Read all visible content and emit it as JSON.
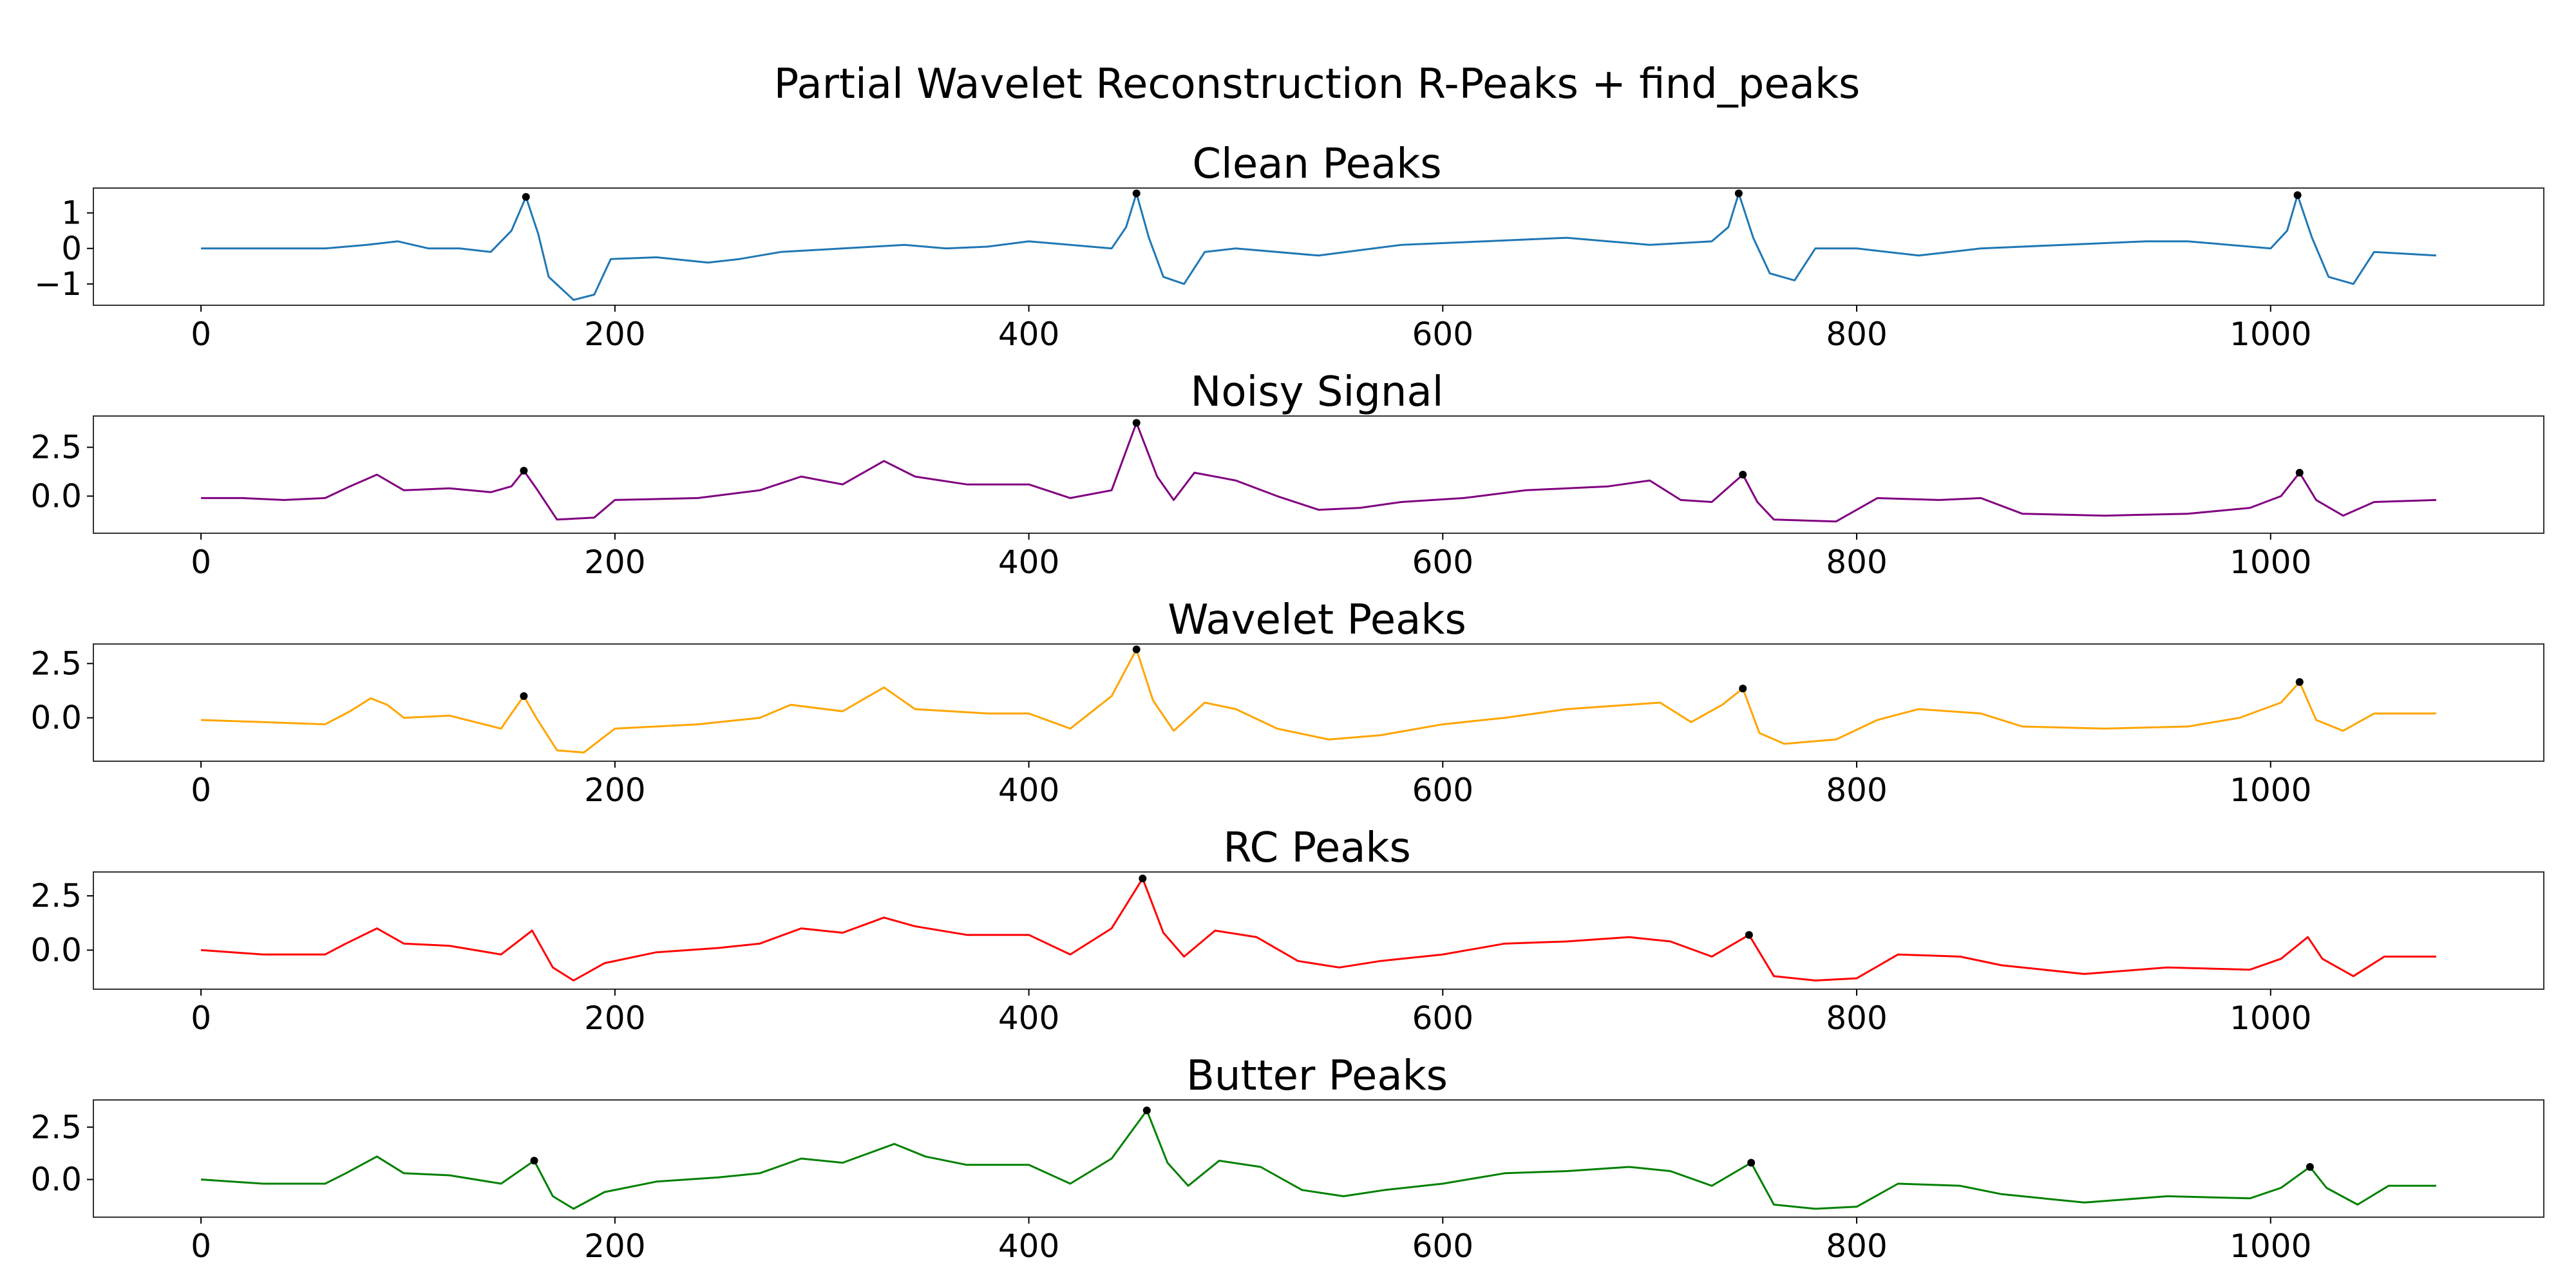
{
  "figure_title": "Partial Wavelet Reconstruction R-Peaks + find_peaks",
  "chart_data": [
    {
      "type": "line",
      "title": "Clean Peaks",
      "color": "#1f77b4",
      "xlim": [
        -52,
        1132
      ],
      "ylim": [
        -1.6,
        1.7
      ],
      "xticks": [
        0,
        200,
        400,
        600,
        800,
        1000
      ],
      "yticks": [
        1,
        0,
        -1
      ],
      "ytick_labels": [
        "1",
        "0",
        "−1"
      ],
      "points": [
        [
          0,
          0
        ],
        [
          20,
          0
        ],
        [
          40,
          0
        ],
        [
          60,
          0
        ],
        [
          80,
          0.1
        ],
        [
          95,
          0.2
        ],
        [
          110,
          0
        ],
        [
          125,
          0
        ],
        [
          140,
          -0.1
        ],
        [
          150,
          0.5
        ],
        [
          157,
          1.45
        ],
        [
          163,
          0.4
        ],
        [
          168,
          -0.8
        ],
        [
          180,
          -1.45
        ],
        [
          190,
          -1.3
        ],
        [
          198,
          -0.3
        ],
        [
          220,
          -0.25
        ],
        [
          245,
          -0.4
        ],
        [
          260,
          -0.3
        ],
        [
          280,
          -0.1
        ],
        [
          310,
          0
        ],
        [
          340,
          0.1
        ],
        [
          360,
          0
        ],
        [
          380,
          0.05
        ],
        [
          400,
          0.2
        ],
        [
          420,
          0.1
        ],
        [
          440,
          0
        ],
        [
          447,
          0.6
        ],
        [
          452,
          1.55
        ],
        [
          458,
          0.3
        ],
        [
          465,
          -0.8
        ],
        [
          475,
          -1
        ],
        [
          485,
          -0.1
        ],
        [
          500,
          0
        ],
        [
          540,
          -0.2
        ],
        [
          580,
          0.1
        ],
        [
          620,
          0.2
        ],
        [
          660,
          0.3
        ],
        [
          680,
          0.2
        ],
        [
          700,
          0.1
        ],
        [
          730,
          0.2
        ],
        [
          738,
          0.6
        ],
        [
          743,
          1.55
        ],
        [
          750,
          0.3
        ],
        [
          758,
          -0.7
        ],
        [
          770,
          -0.9
        ],
        [
          780,
          0
        ],
        [
          800,
          0
        ],
        [
          830,
          -0.2
        ],
        [
          860,
          0
        ],
        [
          900,
          0.1
        ],
        [
          940,
          0.2
        ],
        [
          960,
          0.2
        ],
        [
          980,
          0.1
        ],
        [
          1000,
          0
        ],
        [
          1008,
          0.5
        ],
        [
          1013,
          1.5
        ],
        [
          1020,
          0.3
        ],
        [
          1028,
          -0.8
        ],
        [
          1040,
          -1
        ],
        [
          1050,
          -0.1
        ],
        [
          1080,
          -0.2
        ]
      ],
      "peaks": [
        [
          157,
          1.45
        ],
        [
          452,
          1.55
        ],
        [
          743,
          1.55
        ],
        [
          1013,
          1.5
        ]
      ]
    },
    {
      "type": "line",
      "title": "Noisy Signal",
      "color": "#800080",
      "xlim": [
        -52,
        1132
      ],
      "ylim": [
        -1.9,
        4.1
      ],
      "xticks": [
        0,
        200,
        400,
        600,
        800,
        1000
      ],
      "yticks": [
        2.5,
        0.0
      ],
      "ytick_labels": [
        "2.5",
        "0.0"
      ],
      "points": [
        [
          0,
          -0.1
        ],
        [
          20,
          -0.1
        ],
        [
          40,
          -0.2
        ],
        [
          60,
          -0.1
        ],
        [
          72,
          0.5
        ],
        [
          85,
          1.1
        ],
        [
          98,
          0.3
        ],
        [
          120,
          0.4
        ],
        [
          140,
          0.2
        ],
        [
          150,
          0.5
        ],
        [
          156,
          1.3
        ],
        [
          162,
          0.4
        ],
        [
          172,
          -1.2
        ],
        [
          190,
          -1.1
        ],
        [
          200,
          -0.2
        ],
        [
          240,
          -0.1
        ],
        [
          270,
          0.3
        ],
        [
          290,
          1.0
        ],
        [
          310,
          0.6
        ],
        [
          330,
          1.8
        ],
        [
          345,
          1.0
        ],
        [
          370,
          0.6
        ],
        [
          400,
          0.6
        ],
        [
          420,
          -0.1
        ],
        [
          440,
          0.3
        ],
        [
          452,
          3.75
        ],
        [
          462,
          1.0
        ],
        [
          470,
          -0.2
        ],
        [
          480,
          1.2
        ],
        [
          500,
          0.8
        ],
        [
          520,
          0.0
        ],
        [
          540,
          -0.7
        ],
        [
          560,
          -0.6
        ],
        [
          580,
          -0.3
        ],
        [
          610,
          -0.1
        ],
        [
          640,
          0.3
        ],
        [
          680,
          0.5
        ],
        [
          700,
          0.8
        ],
        [
          715,
          -0.2
        ],
        [
          730,
          -0.3
        ],
        [
          745,
          1.1
        ],
        [
          752,
          -0.3
        ],
        [
          760,
          -1.2
        ],
        [
          790,
          -1.3
        ],
        [
          810,
          -0.1
        ],
        [
          840,
          -0.2
        ],
        [
          860,
          -0.1
        ],
        [
          880,
          -0.9
        ],
        [
          920,
          -1.0
        ],
        [
          960,
          -0.9
        ],
        [
          990,
          -0.6
        ],
        [
          1005,
          0.0
        ],
        [
          1014,
          1.2
        ],
        [
          1022,
          -0.2
        ],
        [
          1035,
          -1.0
        ],
        [
          1050,
          -0.3
        ],
        [
          1080,
          -0.2
        ]
      ],
      "peaks": [
        [
          156,
          1.3
        ],
        [
          452,
          3.75
        ],
        [
          745,
          1.1
        ],
        [
          1014,
          1.2
        ]
      ]
    },
    {
      "type": "line",
      "title": "Wavelet Peaks",
      "color": "#ffa500",
      "xlim": [
        -52,
        1132
      ],
      "ylim": [
        -2.0,
        3.4
      ],
      "xticks": [
        0,
        200,
        400,
        600,
        800,
        1000
      ],
      "yticks": [
        2.5,
        0.0
      ],
      "ytick_labels": [
        "2.5",
        "0.0"
      ],
      "points": [
        [
          0,
          -0.1
        ],
        [
          30,
          -0.2
        ],
        [
          60,
          -0.3
        ],
        [
          72,
          0.3
        ],
        [
          82,
          0.9
        ],
        [
          90,
          0.6
        ],
        [
          98,
          0.0
        ],
        [
          120,
          0.1
        ],
        [
          145,
          -0.5
        ],
        [
          150,
          0.2
        ],
        [
          156,
          1.0
        ],
        [
          162,
          0.0
        ],
        [
          172,
          -1.5
        ],
        [
          185,
          -1.6
        ],
        [
          200,
          -0.5
        ],
        [
          240,
          -0.3
        ],
        [
          270,
          0.0
        ],
        [
          285,
          0.6
        ],
        [
          310,
          0.3
        ],
        [
          330,
          1.4
        ],
        [
          345,
          0.4
        ],
        [
          380,
          0.2
        ],
        [
          400,
          0.2
        ],
        [
          420,
          -0.5
        ],
        [
          440,
          1.0
        ],
        [
          452,
          3.15
        ],
        [
          460,
          0.8
        ],
        [
          470,
          -0.6
        ],
        [
          485,
          0.7
        ],
        [
          500,
          0.4
        ],
        [
          520,
          -0.5
        ],
        [
          545,
          -1.0
        ],
        [
          570,
          -0.8
        ],
        [
          600,
          -0.3
        ],
        [
          630,
          0.0
        ],
        [
          660,
          0.4
        ],
        [
          690,
          0.6
        ],
        [
          705,
          0.7
        ],
        [
          720,
          -0.2
        ],
        [
          735,
          0.6
        ],
        [
          745,
          1.35
        ],
        [
          753,
          -0.7
        ],
        [
          765,
          -1.2
        ],
        [
          790,
          -1.0
        ],
        [
          810,
          -0.1
        ],
        [
          830,
          0.4
        ],
        [
          860,
          0.2
        ],
        [
          880,
          -0.4
        ],
        [
          920,
          -0.5
        ],
        [
          960,
          -0.4
        ],
        [
          985,
          0.0
        ],
        [
          1005,
          0.7
        ],
        [
          1014,
          1.65
        ],
        [
          1022,
          -0.1
        ],
        [
          1035,
          -0.6
        ],
        [
          1050,
          0.2
        ],
        [
          1080,
          0.2
        ]
      ],
      "peaks": [
        [
          156,
          1.0
        ],
        [
          452,
          3.15
        ],
        [
          745,
          1.35
        ],
        [
          1014,
          1.65
        ]
      ]
    },
    {
      "type": "line",
      "title": "RC Peaks",
      "color": "#ff0000",
      "xlim": [
        -52,
        1132
      ],
      "ylim": [
        -1.8,
        3.6
      ],
      "xticks": [
        0,
        200,
        400,
        600,
        800,
        1000
      ],
      "yticks": [
        2.5,
        0.0
      ],
      "ytick_labels": [
        "2.5",
        "0.0"
      ],
      "points": [
        [
          0,
          0.0
        ],
        [
          30,
          -0.2
        ],
        [
          60,
          -0.2
        ],
        [
          70,
          0.3
        ],
        [
          85,
          1.0
        ],
        [
          98,
          0.3
        ],
        [
          120,
          0.2
        ],
        [
          145,
          -0.2
        ],
        [
          160,
          0.9
        ],
        [
          170,
          -0.8
        ],
        [
          180,
          -1.4
        ],
        [
          195,
          -0.6
        ],
        [
          220,
          -0.1
        ],
        [
          250,
          0.1
        ],
        [
          270,
          0.3
        ],
        [
          290,
          1.0
        ],
        [
          310,
          0.8
        ],
        [
          330,
          1.5
        ],
        [
          345,
          1.1
        ],
        [
          370,
          0.7
        ],
        [
          400,
          0.7
        ],
        [
          420,
          -0.2
        ],
        [
          440,
          1.0
        ],
        [
          455,
          3.3
        ],
        [
          465,
          0.8
        ],
        [
          475,
          -0.3
        ],
        [
          490,
          0.9
        ],
        [
          510,
          0.6
        ],
        [
          530,
          -0.5
        ],
        [
          550,
          -0.8
        ],
        [
          570,
          -0.5
        ],
        [
          600,
          -0.2
        ],
        [
          630,
          0.3
        ],
        [
          660,
          0.4
        ],
        [
          690,
          0.6
        ],
        [
          710,
          0.4
        ],
        [
          730,
          -0.3
        ],
        [
          748,
          0.7
        ],
        [
          760,
          -1.2
        ],
        [
          780,
          -1.4
        ],
        [
          800,
          -1.3
        ],
        [
          820,
          -0.2
        ],
        [
          850,
          -0.3
        ],
        [
          870,
          -0.7
        ],
        [
          910,
          -1.1
        ],
        [
          950,
          -0.8
        ],
        [
          990,
          -0.9
        ],
        [
          1005,
          -0.4
        ],
        [
          1018,
          0.6
        ],
        [
          1025,
          -0.4
        ],
        [
          1040,
          -1.2
        ],
        [
          1055,
          -0.3
        ],
        [
          1080,
          -0.3
        ]
      ],
      "peaks": [
        [
          455,
          3.3
        ],
        [
          748,
          0.7
        ]
      ]
    },
    {
      "type": "line",
      "title": "Butter Peaks",
      "color": "#008000",
      "xlim": [
        -52,
        1132
      ],
      "ylim": [
        -1.8,
        3.8
      ],
      "xticks": [
        0,
        200,
        400,
        600,
        800,
        1000
      ],
      "yticks": [
        2.5,
        0.0
      ],
      "ytick_labels": [
        "2.5",
        "0.0"
      ],
      "points": [
        [
          0,
          0.0
        ],
        [
          30,
          -0.2
        ],
        [
          60,
          -0.2
        ],
        [
          70,
          0.3
        ],
        [
          85,
          1.1
        ],
        [
          98,
          0.3
        ],
        [
          120,
          0.2
        ],
        [
          145,
          -0.2
        ],
        [
          161,
          0.9
        ],
        [
          170,
          -0.8
        ],
        [
          180,
          -1.4
        ],
        [
          195,
          -0.6
        ],
        [
          220,
          -0.1
        ],
        [
          250,
          0.1
        ],
        [
          270,
          0.3
        ],
        [
          290,
          1.0
        ],
        [
          310,
          0.8
        ],
        [
          335,
          1.7
        ],
        [
          350,
          1.1
        ],
        [
          370,
          0.7
        ],
        [
          400,
          0.7
        ],
        [
          420,
          -0.2
        ],
        [
          440,
          1.0
        ],
        [
          457,
          3.3
        ],
        [
          467,
          0.8
        ],
        [
          477,
          -0.3
        ],
        [
          492,
          0.9
        ],
        [
          512,
          0.6
        ],
        [
          532,
          -0.5
        ],
        [
          552,
          -0.8
        ],
        [
          572,
          -0.5
        ],
        [
          600,
          -0.2
        ],
        [
          630,
          0.3
        ],
        [
          660,
          0.4
        ],
        [
          690,
          0.6
        ],
        [
          710,
          0.4
        ],
        [
          730,
          -0.3
        ],
        [
          749,
          0.8
        ],
        [
          760,
          -1.2
        ],
        [
          780,
          -1.4
        ],
        [
          800,
          -1.3
        ],
        [
          820,
          -0.2
        ],
        [
          850,
          -0.3
        ],
        [
          870,
          -0.7
        ],
        [
          910,
          -1.1
        ],
        [
          950,
          -0.8
        ],
        [
          990,
          -0.9
        ],
        [
          1005,
          -0.4
        ],
        [
          1019,
          0.6
        ],
        [
          1027,
          -0.4
        ],
        [
          1042,
          -1.2
        ],
        [
          1057,
          -0.3
        ],
        [
          1080,
          -0.3
        ]
      ],
      "peaks": [
        [
          161,
          0.9
        ],
        [
          457,
          3.3
        ],
        [
          749,
          0.8
        ],
        [
          1019,
          0.6
        ]
      ]
    }
  ]
}
